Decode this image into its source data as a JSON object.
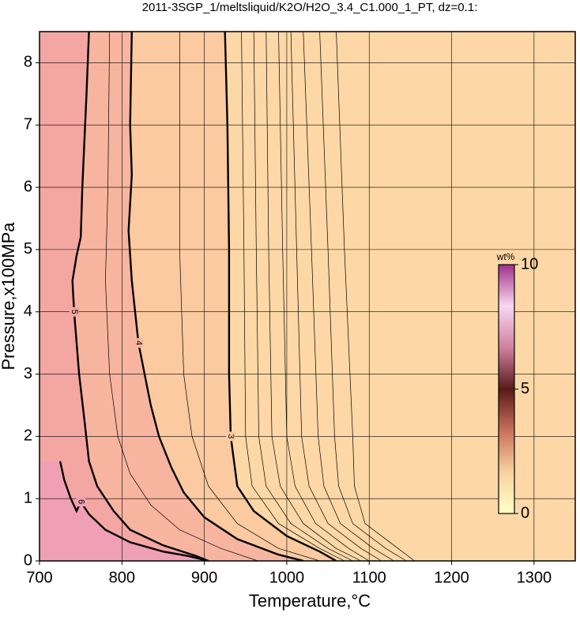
{
  "chart_data": {
    "type": "contour",
    "title": "2011-3SGP_1/meltsliquid/K2O/H2O_3.4_C1.000_1_PT, dz=0.1:",
    "x_label": "Temperature,°C",
    "y_label": "Pressure,x100MPa",
    "xlim": [
      700,
      1350
    ],
    "xticks": [
      700,
      800,
      900,
      1000,
      1100,
      1200,
      1300
    ],
    "ylim": [
      0,
      8.5
    ],
    "yticks": [
      0,
      1,
      2,
      3,
      4,
      5,
      6,
      7,
      8
    ],
    "grid": true,
    "plot_background": "#fdd8a6",
    "line_color": "#000000",
    "contours": [
      {
        "level": 2.2,
        "bold": false,
        "temperature": [
          1060,
          1070,
          1080,
          1082,
          1095,
          1135,
          1155
        ],
        "pressure": [
          8.5,
          5,
          2,
          1.2,
          0.6,
          0.2,
          0
        ]
      },
      {
        "level": 2.3,
        "bold": false,
        "temperature": [
          1040,
          1050,
          1058,
          1063,
          1080,
          1120,
          1145
        ],
        "pressure": [
          8.5,
          5,
          2,
          1.2,
          0.6,
          0.2,
          0
        ]
      },
      {
        "level": 2.4,
        "bold": false,
        "temperature": [
          1020,
          1030,
          1038,
          1045,
          1065,
          1105,
          1130
        ],
        "pressure": [
          8.5,
          5,
          2,
          1.2,
          0.6,
          0.2,
          0
        ]
      },
      {
        "level": 2.5,
        "bold": false,
        "temperature": [
          1005,
          1012,
          1018,
          1027,
          1050,
          1090,
          1115
        ],
        "pressure": [
          8.5,
          5,
          2,
          1.2,
          0.6,
          0.2,
          0
        ]
      },
      {
        "level": 2.6,
        "bold": false,
        "temperature": [
          990,
          995,
          1000,
          1010,
          1035,
          1075,
          1100
        ],
        "pressure": [
          8.5,
          5,
          2,
          1.2,
          0.6,
          0.2,
          0
        ]
      },
      {
        "level": 2.7,
        "bold": false,
        "temperature": [
          975,
          978,
          982,
          992,
          1020,
          1060,
          1090
        ],
        "pressure": [
          8.5,
          5,
          2,
          1.2,
          0.6,
          0.2,
          0
        ]
      },
      {
        "level": 2.8,
        "bold": false,
        "temperature": [
          960,
          963,
          966,
          975,
          1005,
          1050,
          1080
        ],
        "pressure": [
          8.5,
          5,
          2,
          1.2,
          0.6,
          0.2,
          0
        ]
      },
      {
        "level": 2.9,
        "bold": false,
        "temperature": [
          945,
          948,
          950,
          958,
          990,
          1040,
          1070
        ],
        "pressure": [
          8.5,
          5,
          2,
          1.2,
          0.6,
          0.2,
          0
        ]
      },
      {
        "level": 3,
        "bold": true,
        "color": "#fbcaa0",
        "temperature": [
          925,
          928,
          930,
          930,
          932,
          940,
          960,
          1000,
          1040,
          1060
        ],
        "pressure": [
          8.5,
          7,
          5,
          3,
          2,
          1.2,
          0.8,
          0.4,
          0.15,
          0
        ]
      },
      {
        "level": 3.5,
        "bold": false,
        "temperature": [
          870,
          870,
          875,
          885,
          905,
          940,
          990,
          1040
        ],
        "pressure": [
          8.5,
          5,
          3,
          2,
          1.2,
          0.6,
          0.2,
          0
        ]
      },
      {
        "level": 4,
        "bold": true,
        "color": "#f7b59f",
        "temperature": [
          812,
          810,
          812,
          808,
          812,
          820,
          835,
          845,
          860,
          875,
          900,
          940,
          990,
          1020
        ],
        "pressure": [
          8.5,
          7,
          6.2,
          5.3,
          4.5,
          3.5,
          2.5,
          2,
          1.5,
          1.1,
          0.7,
          0.35,
          0.1,
          0
        ]
      },
      {
        "level": 4.5,
        "bold": false,
        "temperature": [
          785,
          783,
          780,
          785,
          795,
          810,
          835,
          870,
          920,
          965
        ],
        "pressure": [
          8.5,
          6,
          4.5,
          3,
          2,
          1.4,
          0.9,
          0.5,
          0.2,
          0
        ]
      },
      {
        "level": 5,
        "bold": true,
        "color": "#f3a6a2",
        "temperature": [
          760,
          757,
          752,
          750,
          745,
          740,
          742,
          748,
          755,
          760,
          770,
          790,
          810,
          850,
          890,
          905
        ],
        "pressure": [
          8.5,
          7.5,
          6,
          5.2,
          4.9,
          4.5,
          4,
          3,
          2.2,
          1.6,
          1.2,
          0.8,
          0.5,
          0.25,
          0.08,
          0
        ]
      },
      {
        "level": 6,
        "bold": true,
        "color": "#efa0b4",
        "temperature": [
          725,
          730,
          738,
          745,
          750,
          760,
          780,
          810,
          850,
          880,
          905
        ],
        "pressure": [
          1.6,
          1.3,
          1,
          0.8,
          0.95,
          0.75,
          0.5,
          0.3,
          0.15,
          0.08,
          0
        ]
      }
    ],
    "colorbar": {
      "title": "wt%",
      "clim": [
        0,
        10
      ],
      "ticks": [
        0,
        5,
        10
      ],
      "colormap": [
        "#ffffc8",
        "#f8d2a0",
        "#c8705a",
        "#5a1a1a",
        "#d080a0",
        "#f8d8f0",
        "#a0308a"
      ]
    }
  }
}
